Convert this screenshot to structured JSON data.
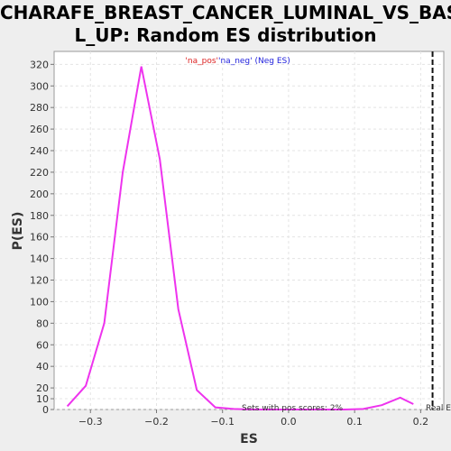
{
  "chart_data": {
    "type": "line",
    "title_line1": "CHARAFE_BREAST_CANCER_LUMINAL_VS_BASA",
    "title_line2": "L_UP: Random ES distribution",
    "xlabel": "ES",
    "ylabel": "P(ES)",
    "xlim": [
      -0.355,
      0.235
    ],
    "ylim": [
      0,
      332
    ],
    "xticks": [
      -0.3,
      -0.2,
      -0.1,
      0.0,
      0.1,
      0.2
    ],
    "xtick_labels": [
      "−0.3",
      "−0.2",
      "−0.1",
      "0.0",
      "0.1",
      "0.2"
    ],
    "yticks": [
      0,
      10,
      20,
      40,
      60,
      80,
      100,
      120,
      140,
      160,
      180,
      200,
      220,
      240,
      260,
      280,
      300,
      320
    ],
    "grid": true,
    "series": [
      {
        "color": "#ee33ee",
        "x": [
          -0.335,
          -0.307,
          -0.279,
          -0.251,
          -0.223,
          -0.195,
          -0.167,
          -0.139,
          -0.111,
          -0.083,
          -0.055,
          -0.027,
          0.001,
          0.029,
          0.057,
          0.085,
          0.113,
          0.141,
          0.169,
          0.189
        ],
        "y": [
          3,
          22,
          80,
          220,
          318,
          232,
          93,
          18,
          2,
          0.5,
          0,
          0,
          0,
          0,
          0,
          0,
          0.5,
          4,
          11,
          5
        ]
      }
    ],
    "real_es_x": 0.218,
    "real_es_label": "Real ES",
    "legend": {
      "pos_label": "'na_pos'",
      "neg_label": "'na_neg' (Neg ES)",
      "pos_color": "#dd2222",
      "neg_color": "#2222dd"
    },
    "annotation": "Sets with pos scores: 2%"
  }
}
